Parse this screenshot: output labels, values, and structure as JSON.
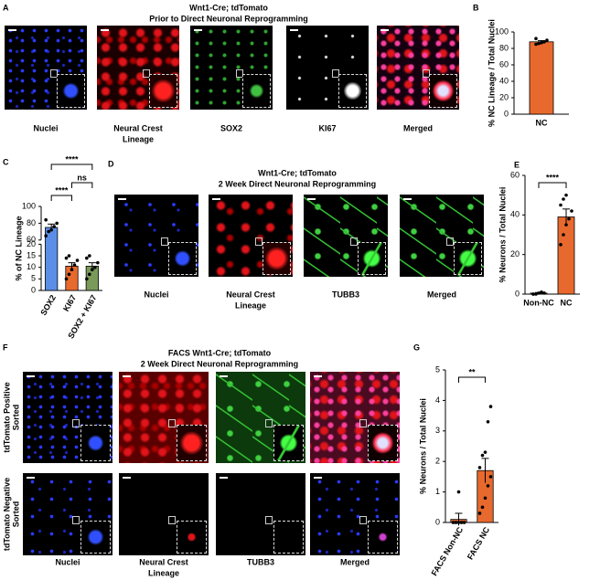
{
  "panels": {
    "A": {
      "label": "A",
      "title": [
        "Wnt1-Cre; tdTomato",
        "Prior to Direct Neuronal Reprogramming"
      ],
      "channels": [
        "Nuclei",
        [
          "Neural Crest",
          "Lineage"
        ],
        "SOX2",
        "KI67",
        "Merged"
      ]
    },
    "D": {
      "label": "D",
      "title": [
        "Wnt1-Cre; tdTomato",
        "2 Week Direct Neuronal Reprogramming"
      ],
      "channels": [
        "Nuclei",
        [
          "Neural Crest",
          "Lineage"
        ],
        "TUBB3",
        "Merged"
      ]
    },
    "F": {
      "label": "F",
      "title": [
        "FACS Wnt1-Cre; tdTomato",
        "2 Week Direct Neuronal Reprogramming"
      ],
      "rows": [
        [
          "tdTomato Positive",
          "Sorted"
        ],
        [
          "tdTomato Negative",
          "Sorted"
        ]
      ],
      "channels": [
        "Nuclei",
        [
          "Neural Crest",
          "Lineage"
        ],
        "TUBB3",
        "Merged"
      ]
    }
  },
  "chart_data": [
    {
      "type": "bar",
      "label": "B",
      "ylabel": "% NC Lineage / Total Nuclei",
      "categories": [
        "NC"
      ],
      "values": [
        88
      ],
      "errors": [
        1.5
      ],
      "colors": [
        "#e8692d"
      ],
      "points": [
        [
          85,
          86,
          87,
          88,
          90,
          92
        ]
      ],
      "ylim": [
        0,
        100
      ],
      "yticks": [
        0,
        20,
        40,
        60,
        80,
        100
      ]
    },
    {
      "type": "bar",
      "label": "C",
      "ylabel": "% of NC Lineage",
      "categories": [
        "SOX2",
        "KI67",
        "SOX2 + KI67"
      ],
      "values": [
        75,
        10.5,
        10.5
      ],
      "errors": [
        4,
        1.5,
        1.5
      ],
      "colors": [
        "#5b8ee6",
        "#e8692d",
        "#7a9a5a"
      ],
      "points": [
        [
          65,
          70,
          72,
          76,
          80,
          84
        ],
        [
          5,
          7,
          9,
          11,
          13,
          14,
          15
        ],
        [
          5,
          7,
          9,
          10,
          12,
          14,
          15
        ]
      ],
      "ylim": [
        0,
        100
      ],
      "yticks": [
        0,
        5,
        10,
        15,
        20,
        60,
        80,
        100
      ],
      "axis_break": [
        20,
        60
      ],
      "annotations": [
        "****",
        "ns",
        "****"
      ]
    },
    {
      "type": "bar",
      "label": "E",
      "ylabel": "% Neurons / Total Nuclei",
      "categories": [
        "Non-NC",
        "NC"
      ],
      "values": [
        0.5,
        39
      ],
      "errors": [
        0.3,
        4
      ],
      "colors": [
        "#e8692d",
        "#e8692d"
      ],
      "points": [
        [
          0,
          0,
          0.5,
          1,
          0.5,
          0
        ],
        [
          25,
          30,
          35,
          38,
          42,
          45,
          48,
          50
        ]
      ],
      "ylim": [
        0,
        60
      ],
      "yticks": [
        0,
        20,
        40,
        60
      ],
      "annotations": [
        "****"
      ]
    },
    {
      "type": "bar",
      "label": "G",
      "ylabel": "% Neurons / Total Nuclei",
      "categories": [
        "FACS Non-NC",
        "FACS NC"
      ],
      "values": [
        0.1,
        1.7
      ],
      "errors": [
        0.2,
        0.4
      ],
      "colors": [
        "#e8692d",
        "#e8692d"
      ],
      "points": [
        [
          0,
          0,
          0,
          0,
          0,
          0,
          0,
          1.0,
          0,
          0
        ],
        [
          0.3,
          0.5,
          0.8,
          1.2,
          1.5,
          1.8,
          2.2,
          2.3,
          3.3,
          3.8
        ]
      ],
      "ylim": [
        0,
        5
      ],
      "yticks": [
        0,
        1,
        2,
        3,
        4,
        5
      ],
      "annotations": [
        "**"
      ]
    }
  ]
}
